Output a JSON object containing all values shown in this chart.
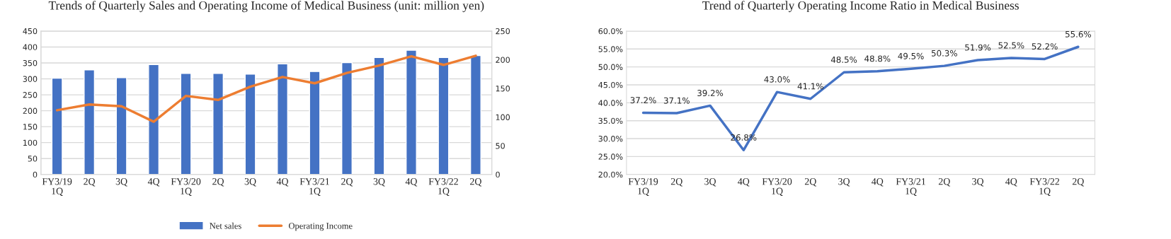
{
  "chart_data": [
    {
      "type": "bar",
      "title": "Trends of Quarterly Sales and Operating Income of Medical Business (unit: million yen)",
      "categories": [
        "FY3/19\n1Q",
        "2Q",
        "3Q",
        "4Q",
        "FY3/20\n1Q",
        "2Q",
        "3Q",
        "4Q",
        "FY3/21\n1Q",
        "2Q",
        "3Q",
        "4Q",
        "FY3/22\n1Q",
        "2Q"
      ],
      "series": [
        {
          "name": "Net sales",
          "color": "#4472c4",
          "values": [
            302,
            328,
            304,
            345,
            317,
            317,
            315,
            347,
            323,
            351,
            367,
            390,
            367,
            373
          ]
        },
        {
          "name": "Operating Income",
          "type": "line",
          "axis": "y2",
          "color": "#ed7d31",
          "values": [
            112,
            122,
            119,
            92,
            137,
            130,
            153,
            170,
            159,
            177,
            190,
            206,
            191,
            207
          ]
        }
      ],
      "ylim": [
        0,
        450
      ],
      "yticks": [
        0,
        50,
        100,
        150,
        200,
        250,
        300,
        350,
        400,
        450
      ],
      "y2lim": [
        0,
        250
      ],
      "y2ticks": [
        0,
        50,
        100,
        150,
        200,
        250
      ],
      "grid": "y",
      "legend": "bottom"
    },
    {
      "type": "line",
      "title": "Trend of Quarterly Operating Income Ratio in Medical Business",
      "categories": [
        "FY3/19\n1Q",
        "2Q",
        "3Q",
        "4Q",
        "FY3/20\n1Q",
        "2Q",
        "3Q",
        "4Q",
        "FY3/21\n1Q",
        "2Q",
        "3Q",
        "4Q",
        "FY3/22\n1Q",
        "2Q"
      ],
      "values": [
        37.2,
        37.1,
        39.2,
        26.8,
        43.0,
        41.1,
        48.5,
        48.8,
        49.5,
        50.3,
        51.9,
        52.5,
        52.2,
        55.6
      ],
      "value_labels": [
        "37.2%",
        "37.1%",
        "39.2%",
        "26.8%",
        "43.0%",
        "41.1%",
        "48.5%",
        "48.8%",
        "49.5%",
        "50.3%",
        "51.9%",
        "52.5%",
        "52.2%",
        "55.6%"
      ],
      "color": "#4472c4",
      "ylim": [
        20,
        60
      ],
      "yticks": [
        {
          "value": 20,
          "label": "20.0%"
        },
        {
          "value": 25,
          "label": "25.0%"
        },
        {
          "value": 30,
          "label": "30.0%"
        },
        {
          "value": 35,
          "label": "35.0%"
        },
        {
          "value": 40,
          "label": "40.0%"
        },
        {
          "value": 45,
          "label": "45.0%"
        },
        {
          "value": 50,
          "label": "50.0%"
        },
        {
          "value": 55,
          "label": "55.0%"
        },
        {
          "value": 60,
          "label": "60.0%"
        }
      ],
      "grid": "y"
    }
  ]
}
